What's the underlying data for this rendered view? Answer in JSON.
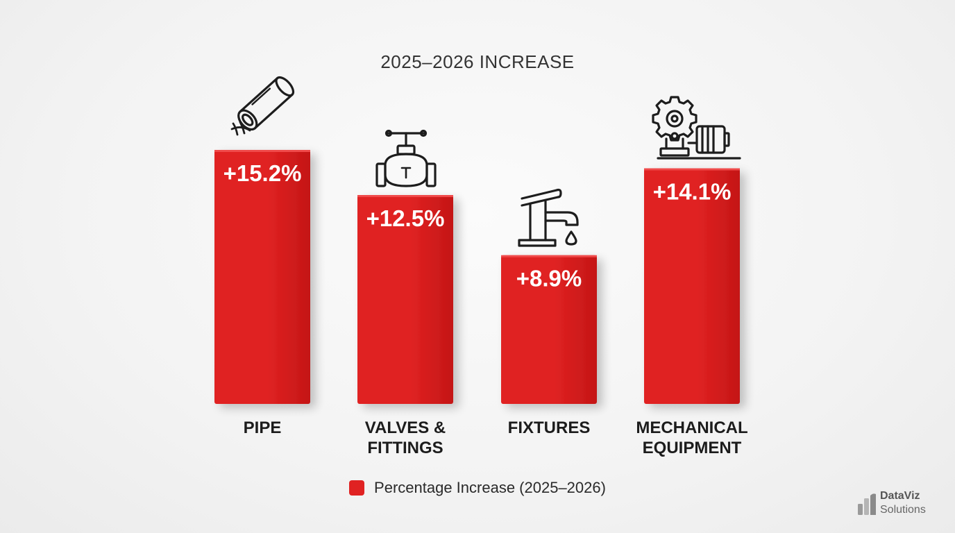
{
  "chart_data": {
    "type": "bar",
    "title": "2025–2026 INCREASE",
    "categories": [
      [
        "PIPE"
      ],
      [
        "VALVES &",
        "FITTINGS"
      ],
      [
        "FIXTURES"
      ],
      [
        "MECHANICAL",
        "EQUIPMENT"
      ]
    ],
    "series": [
      {
        "name": "Percentage Increase (2025–2026)",
        "values": [
          15.2,
          12.5,
          8.9,
          14.1
        ],
        "labels": [
          "+15.2%",
          "+12.5%",
          "+8.9%",
          "+14.1%"
        ],
        "color": "#e02222"
      }
    ],
    "icons": [
      "pipe-icon",
      "valve-icon",
      "faucet-icon",
      "pump-motor-icon"
    ],
    "ylim": [
      0,
      15.2
    ],
    "grid": false,
    "legend_position": "bottom-center",
    "xlabel": "",
    "ylabel": ""
  },
  "branding": {
    "name": "DataViz",
    "sub": "Solutions"
  }
}
